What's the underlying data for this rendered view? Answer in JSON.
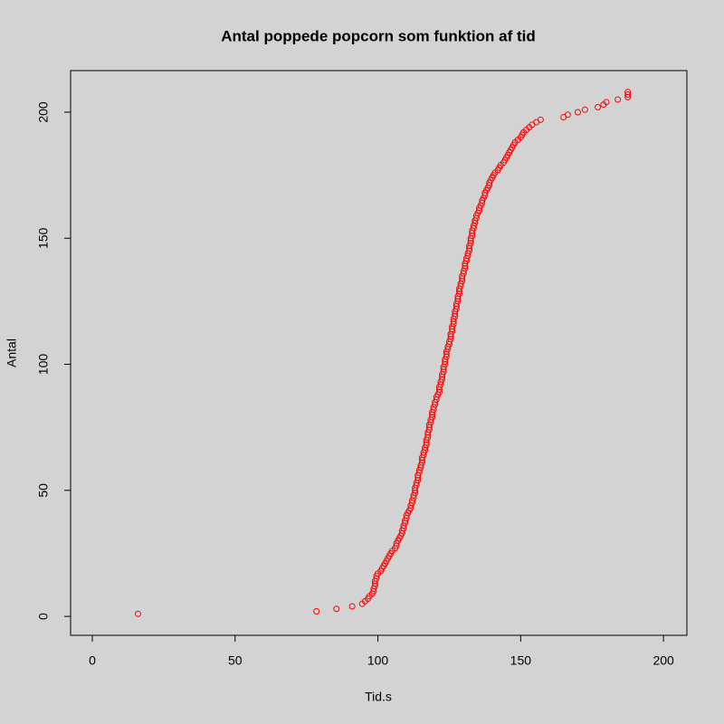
{
  "chart_data": {
    "type": "scatter",
    "title": "Antal poppede popcorn som funktion af tid",
    "x_label": "Tid.s",
    "y_label": "Antal",
    "color": "#ff0000",
    "xlim": [
      -7.6,
      208.2
    ],
    "ylim": [
      -7.5,
      216.5
    ],
    "xticks": [
      0,
      50,
      100,
      150,
      200
    ],
    "yticks": [
      0,
      50,
      100,
      150,
      200
    ],
    "series": [
      {
        "x": [
          16,
          78.5,
          85.5,
          91,
          94.5,
          95.5,
          96.5,
          97,
          98,
          98.5,
          98.5,
          99,
          99,
          99,
          99.5,
          99.5,
          100,
          101,
          101.5,
          102,
          102.5,
          103,
          103.5,
          104,
          104.5,
          105,
          106,
          106.5,
          106.5,
          107,
          107.5,
          108,
          108.5,
          108.5,
          109,
          109,
          109.5,
          109.5,
          110,
          110,
          110.5,
          111,
          111.5,
          111.5,
          112,
          112,
          112.5,
          112.5,
          113,
          113,
          113,
          113.5,
          113.5,
          114,
          114,
          114,
          114.5,
          114.5,
          115,
          115,
          115.5,
          115.5,
          115.5,
          116,
          116,
          116.5,
          116.5,
          117,
          117,
          117,
          117.5,
          117.5,
          117.5,
          118,
          118,
          118,
          118.5,
          118.5,
          119,
          119,
          119,
          119.5,
          119.5,
          120,
          120,
          120.5,
          120.5,
          121,
          121.5,
          121.5,
          121.5,
          122,
          122,
          122.5,
          122.5,
          122.5,
          123,
          123,
          123,
          123.5,
          123.5,
          123.5,
          124,
          124,
          124,
          124.5,
          124.5,
          125,
          125,
          125.5,
          125.5,
          125.5,
          126,
          126,
          126,
          126.5,
          126.5,
          126.5,
          127,
          127,
          127,
          127.5,
          127.5,
          127.5,
          128,
          128,
          128,
          128.5,
          128.5,
          128.5,
          129,
          129,
          129.5,
          129.5,
          129.5,
          130,
          130,
          130.5,
          130.5,
          130.5,
          131,
          131,
          131.5,
          131.5,
          132,
          132,
          132,
          132.5,
          132.5,
          132.5,
          133,
          133,
          133,
          133.5,
          133.5,
          134,
          134,
          134.5,
          134.5,
          135,
          135.5,
          135.5,
          136,
          136.5,
          136.5,
          137,
          137.5,
          137.5,
          138,
          138.5,
          139,
          139,
          139.5,
          140,
          140.5,
          141,
          142,
          142.5,
          143,
          144,
          144.5,
          145,
          145.5,
          146,
          146.5,
          147,
          147.5,
          148,
          149,
          150,
          150.5,
          151,
          152,
          153,
          154,
          155.5,
          157,
          165,
          166.5,
          170,
          172.5,
          177,
          179,
          180,
          184,
          187.5,
          187.5,
          187.5
        ],
        "y": [
          1,
          2,
          3,
          4,
          5,
          6,
          7,
          8,
          9,
          10,
          11,
          12,
          13,
          14,
          15,
          16,
          17,
          18,
          19,
          20,
          21,
          22,
          23,
          24,
          25,
          26,
          27,
          28,
          29,
          30,
          31,
          32,
          33,
          34,
          35,
          36,
          37,
          38,
          39,
          40,
          41,
          42,
          43,
          44,
          45,
          46,
          47,
          48,
          49,
          50,
          51,
          52,
          53,
          54,
          55,
          56,
          57,
          58,
          59,
          60,
          61,
          62,
          63,
          64,
          65,
          66,
          67,
          68,
          69,
          70,
          71,
          72,
          73,
          74,
          75,
          76,
          77,
          78,
          79,
          80,
          81,
          82,
          83,
          84,
          85,
          86,
          87,
          88,
          89,
          90,
          91,
          92,
          93,
          94,
          95,
          96,
          97,
          98,
          99,
          100,
          101,
          102,
          103,
          104,
          105,
          106,
          107,
          108,
          109,
          110,
          111,
          112,
          113,
          114,
          115,
          116,
          117,
          118,
          119,
          120,
          121,
          122,
          123,
          124,
          125,
          126,
          127,
          128,
          129,
          130,
          131,
          132,
          133,
          134,
          135,
          136,
          137,
          138,
          139,
          140,
          141,
          142,
          143,
          144,
          145,
          146,
          147,
          148,
          149,
          150,
          151,
          152,
          153,
          154,
          155,
          156,
          157,
          158,
          159,
          160,
          161,
          162,
          163,
          164,
          165,
          166,
          167,
          168,
          169,
          170,
          171,
          172,
          173,
          174,
          175,
          176,
          177,
          178,
          179,
          180,
          181,
          182,
          183,
          184,
          185,
          186,
          187,
          188,
          189,
          190,
          191,
          192,
          193,
          194,
          195,
          196,
          197,
          198,
          199,
          200,
          201,
          202,
          203,
          204,
          205,
          206,
          207,
          208
        ]
      }
    ]
  }
}
